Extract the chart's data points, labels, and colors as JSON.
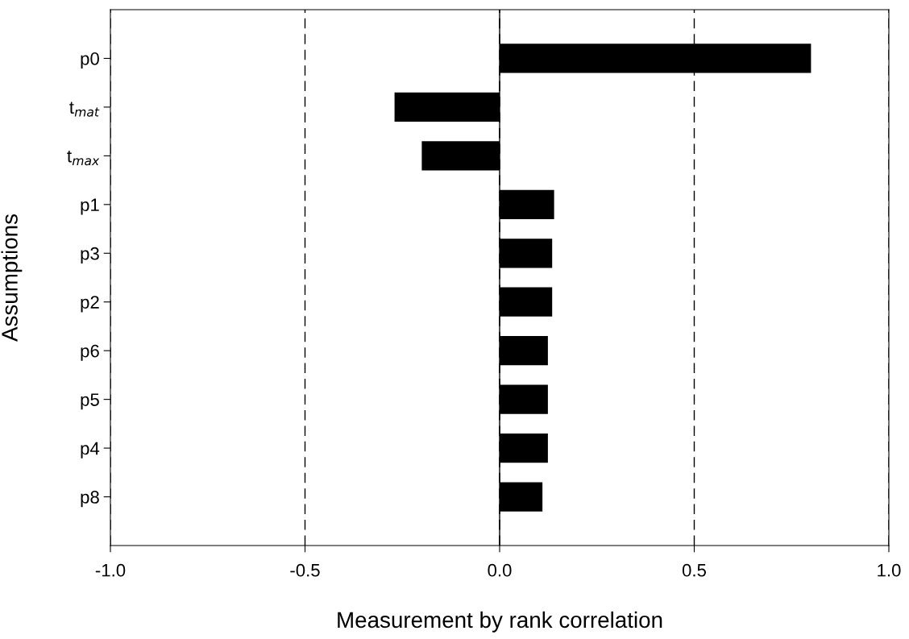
{
  "chart_data": {
    "type": "bar",
    "orientation": "horizontal",
    "xlabel": "Measurement by rank correlation",
    "ylabel": "Assumptions",
    "categories": [
      "p0",
      "t$_{mat}$",
      "t$_{max}$",
      "p1",
      "p3",
      "p2",
      "p6",
      "p5",
      "p4",
      "p8"
    ],
    "values": [
      0.8,
      -0.27,
      -0.2,
      0.14,
      0.135,
      0.135,
      0.124,
      0.124,
      0.124,
      0.11
    ],
    "color": "#000000",
    "xlim": [
      -1.0,
      1.0
    ],
    "xticks": [
      {
        "value": -1.0,
        "label": "-1.0"
      },
      {
        "value": -0.5,
        "label": "-0.5"
      },
      {
        "value": 0.0,
        "label": "0.0"
      },
      {
        "value": 0.5,
        "label": "0.5"
      },
      {
        "value": 1.0,
        "label": "1.0"
      }
    ],
    "grid": "x",
    "line_style": "dashed",
    "ref_lines": [
      {
        "axis": "x",
        "value": 0.0,
        "color": "#000000",
        "line_style": "solid"
      }
    ]
  }
}
